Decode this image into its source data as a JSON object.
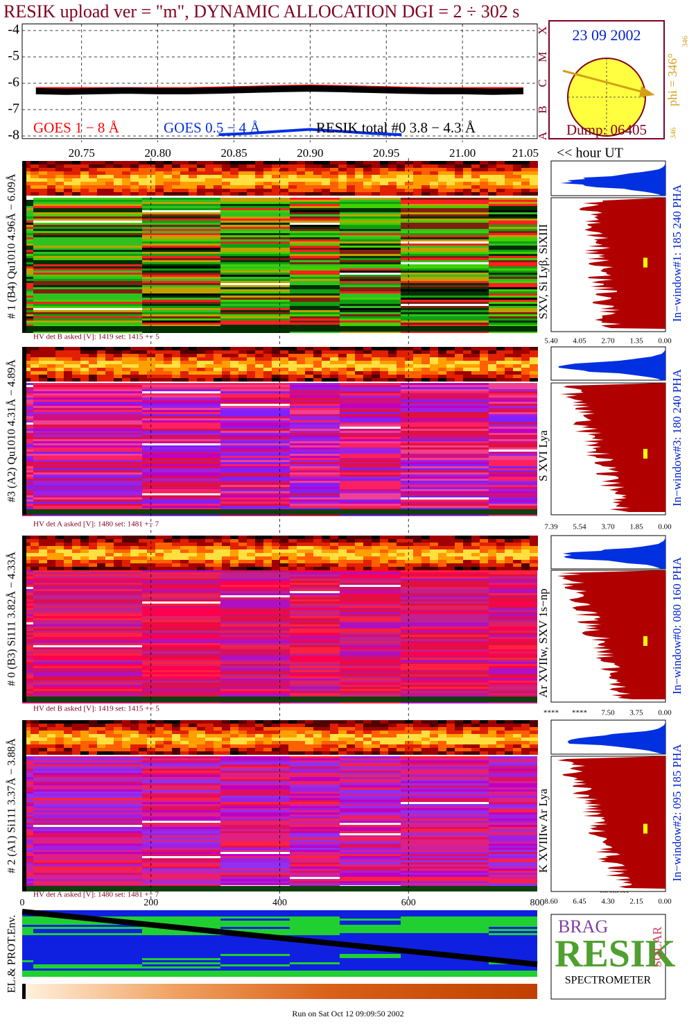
{
  "title": "RESIK upload ver = \"m\", DYNAMIC ALLOCATION  DGI =   2 ÷ 302 s",
  "chart_data": {
    "type": "line",
    "x_label": "<< hour UT",
    "x": [
      20.72,
      20.74,
      20.76,
      20.78,
      20.8,
      20.82,
      20.84,
      20.86,
      20.88,
      20.9,
      20.92,
      20.94,
      20.96,
      20.98,
      21.0,
      21.02,
      21.04
    ],
    "xlim": [
      20.711,
      21.05
    ],
    "xticks": [
      20.75,
      {
        "value": 20.8,
        "label": "20.80"
      },
      20.85,
      {
        "value": 20.9,
        "label": "20.90"
      },
      20.95,
      {
        "value": 21.0,
        "label": "21.00"
      },
      21.05
    ],
    "ylim": [
      -8.1,
      -3.75
    ],
    "yticks": [
      -4,
      -5,
      -6,
      -7,
      -8
    ],
    "grid": true,
    "series": [
      {
        "name": "GOES 1 − 8 Å",
        "color": "#ff0000",
        "values": [
          -6.2,
          -6.2,
          -6.2,
          -6.2,
          -6.2,
          -6.2,
          -6.18,
          -6.15,
          -6.12,
          -6.1,
          -6.12,
          -6.15,
          -6.18,
          -6.2,
          -6.2,
          -6.2,
          -6.2
        ]
      },
      {
        "name": "GOES 0.5 − 4 Å",
        "color": "#0030e0",
        "values": [
          null,
          null,
          null,
          null,
          null,
          null,
          -7.95,
          -7.9,
          -7.82,
          -7.75,
          -7.82,
          -7.9,
          -7.95,
          null,
          null,
          null,
          null
        ]
      },
      {
        "name": "RESIK total #0  3.8 − 4.3 Å",
        "color": "#000000",
        "values": [
          -6.3,
          -6.32,
          -6.3,
          -6.28,
          -6.3,
          -6.3,
          -6.28,
          -6.25,
          -6.22,
          -6.2,
          -6.22,
          -6.25,
          -6.28,
          -6.3,
          -6.3,
          -6.32,
          -6.3
        ]
      }
    ]
  },
  "flare_classes": [
    "A",
    "B",
    "C",
    "M",
    "X"
  ],
  "sun": {
    "date": "23 09 2002",
    "phi": "phi = 346°",
    "phi_top": "346",
    "phi_bottom": "346",
    "dump": "Dump: 06405"
  },
  "detectors": [
    {
      "label": "# 1 (B4) Qu1010 4.96Å − 6.09Å",
      "hv": "HV det B asked [V]:  1419 set:  1415 +−   5",
      "lines": "SXV, Si Lyβ, SiXIII",
      "window": "In−window#1:  185 240 PHA",
      "spectrum_ticks": [
        "5.40",
        "4.05",
        "2.70",
        "1.35",
        "0.00"
      ]
    },
    {
      "label": "#3 (A2) Qu1010  4.31Å − 4.89Å",
      "hv": "HV det A asked [V]:  1480 set:  1481 +−   7",
      "lines": "S XVI Lya",
      "window": "In−window#3:  180 240 PHA",
      "spectrum_ticks": [
        "7.39",
        "5.54",
        "3.70",
        "1.85",
        "0.00"
      ]
    },
    {
      "label": "# 0 (B3) Si111  3.82Å − 4.33Å",
      "hv": "HV det B asked [V]:  1419 set:  1415 +−   5",
      "lines": "Ar XVIIw,  SXV 1s−np",
      "window": "In−window#0:  080 160 PHA",
      "spectrum_ticks": [
        "****",
        "****",
        "7.50",
        "3.75",
        "0.00"
      ]
    },
    {
      "label": "# 2 (A1) Si111  3.37Å − 3.88Å",
      "hv": "HV det A asked [V]:  1480 set:  1481 +−   7",
      "lines": "K XVIIIw  Ar Lya",
      "window": "In−window#2:  095 185 PHA",
      "spectrum_ticks": [
        "8.60",
        "6.45",
        "4.30",
        "2.15",
        "0.00"
      ]
    }
  ],
  "spectrum_axis_label": "cts/bin/sec",
  "bottom_axis_ticks": [
    0,
    200,
    400,
    600,
    800
  ],
  "env_label": "EL.& PROT.Env.",
  "logo": {
    "brag": "BRAG",
    "resik": "RESIK",
    "solar": "SOLAR",
    "spectrometer": "SPECTROMETER"
  },
  "footer": "Run on Sat Oct 12 09:09:50 2002"
}
